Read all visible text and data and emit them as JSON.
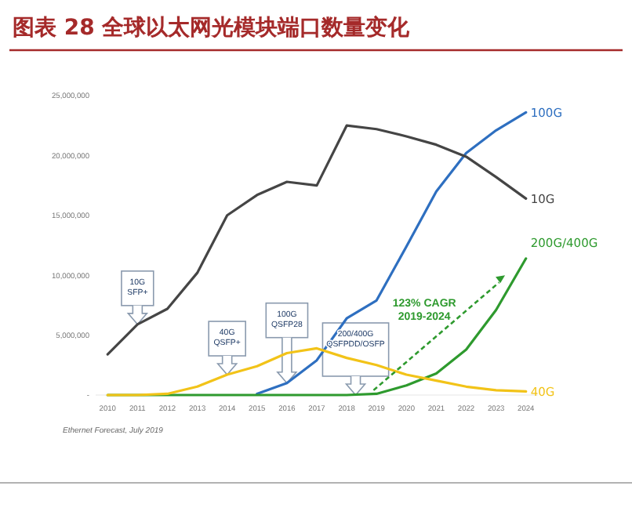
{
  "chart_data": {
    "type": "line",
    "title": "图表 28 全球以太网光模块端口数量变化",
    "x": [
      2010,
      2011,
      2012,
      2013,
      2014,
      2015,
      2016,
      2017,
      2018,
      2019,
      2020,
      2021,
      2022,
      2023,
      2024
    ],
    "series": [
      {
        "name": "100G",
        "color": "#2e6fc0",
        "values": [
          null,
          null,
          null,
          null,
          null,
          100000,
          1000000,
          2900000,
          6400000,
          7900000,
          12400000,
          17000000,
          20200000,
          22100000,
          23600000
        ]
      },
      {
        "name": "10G",
        "color": "#454545",
        "values": [
          3400000,
          5900000,
          7200000,
          10200000,
          15000000,
          16700000,
          17800000,
          17500000,
          22500000,
          22200000,
          21600000,
          20900000,
          19900000,
          18200000,
          16400000
        ]
      },
      {
        "name": "200G/400G",
        "color": "#2e9a2e",
        "values": [
          0,
          0,
          0,
          0,
          0,
          0,
          0,
          0,
          0,
          100000,
          800000,
          1800000,
          3800000,
          7100000,
          11400000
        ]
      },
      {
        "name": "40G",
        "color": "#f2c318",
        "values": [
          0,
          0,
          100000,
          700000,
          1700000,
          2400000,
          3500000,
          3900000,
          3100000,
          2500000,
          1700000,
          1200000,
          700000,
          400000,
          300000
        ]
      }
    ],
    "xlim": [
      2009.6,
      2024.4
    ],
    "xticks": [
      2010,
      2011,
      2012,
      2013,
      2014,
      2015,
      2016,
      2017,
      2018,
      2019,
      2020,
      2021,
      2022,
      2023,
      2024
    ],
    "ylim": [
      0,
      25000000
    ],
    "yticks": [
      {
        "value": 0,
        "label": "-"
      },
      {
        "value": 5000000,
        "label": "5,000,000"
      },
      {
        "value": 10000000,
        "label": "10,000,000"
      },
      {
        "value": 15000000,
        "label": "15,000,000"
      },
      {
        "value": 20000000,
        "label": "20,000,000"
      },
      {
        "value": 25000000,
        "label": "25,000,000"
      }
    ],
    "grid": false,
    "legend": false,
    "marker": "none",
    "line_style": "solid",
    "annotations": [
      "10G\nSFP+",
      "40G\nQSFP+",
      "100G\nQSFP28",
      "200/400G\nQSFPDD/OSFP",
      "123% CAGR\n2019-2024",
      "Ethernet Forecast, July 2019"
    ]
  }
}
